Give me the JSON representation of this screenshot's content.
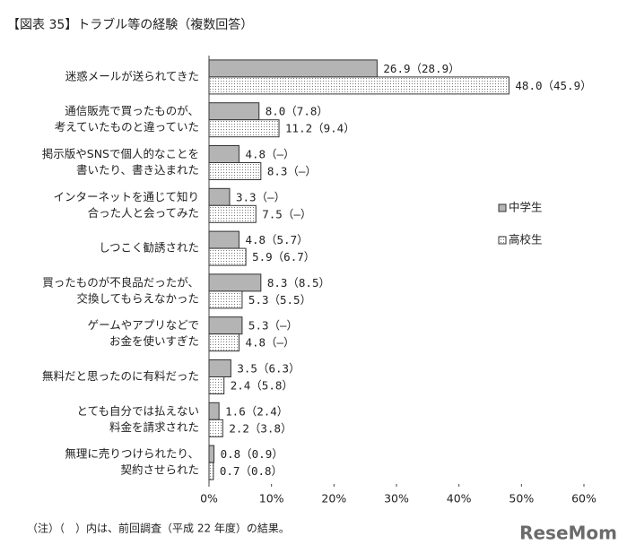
{
  "chart_data": {
    "type": "bar",
    "orientation": "horizontal",
    "title": "【図表 35】トラブル等の経験（複数回答）",
    "note": "（注）（　）内は、前回調査（平成 22 年度）の結果。",
    "watermark": "ReseMom",
    "categories": [
      [
        "迷惑メールが送られてきた"
      ],
      [
        "通信販売で買ったものが、",
        "考えていたものと違っていた"
      ],
      [
        "掲示版やSNSで個人的なことを",
        "書いたり、書き込まれた"
      ],
      [
        "インターネットを通じて知り",
        "合った人と会ってみた"
      ],
      [
        "しつこく勧誘された"
      ],
      [
        "買ったものが不良品だったが、",
        "交換してもらえなかった"
      ],
      [
        "ゲームやアプリなどで",
        "お金を使いすぎた"
      ],
      [
        "無料だと思ったのに有料だった"
      ],
      [
        "とても自分では払えない",
        "料金を請求された"
      ],
      [
        "無理に売りつけられたり、",
        "契約させられた"
      ]
    ],
    "series": [
      {
        "name": "中学生",
        "color": "#b4b4b4",
        "values": [
          26.9,
          8.0,
          4.8,
          3.3,
          4.8,
          8.3,
          5.3,
          3.5,
          1.6,
          0.8
        ],
        "value_labels": [
          "26.9（28.9）",
          "8.0（7.8）",
          "4.8（–）",
          "3.3（–）",
          "4.8（5.7）",
          "8.3（8.5）",
          "5.3（–）",
          "3.5（6.3）",
          "1.6（2.4）",
          "0.8（0.9）"
        ]
      },
      {
        "name": "高校生",
        "color": "#ffffff",
        "pattern": "dotted",
        "values": [
          48.0,
          11.2,
          8.3,
          7.5,
          5.9,
          5.3,
          4.8,
          2.4,
          2.2,
          0.7
        ],
        "value_labels": [
          "48.0（45.9）",
          "11.2（9.4）",
          "8.3（–）",
          "7.5（–）",
          "5.9（6.7）",
          "5.3（5.5）",
          "4.8（–）",
          "2.4（5.8）",
          "2.2（3.8）",
          "0.7（0.8）"
        ]
      }
    ],
    "xlim": [
      0,
      60
    ],
    "xticks": [
      {
        "value": 0,
        "label": "0%"
      },
      {
        "value": 10,
        "label": "10%"
      },
      {
        "value": 20,
        "label": "20%"
      },
      {
        "value": 30,
        "label": "30%"
      },
      {
        "value": 40,
        "label": "40%"
      },
      {
        "value": 50,
        "label": "50%"
      },
      {
        "value": 60,
        "label": "60%"
      }
    ],
    "grid": false
  }
}
